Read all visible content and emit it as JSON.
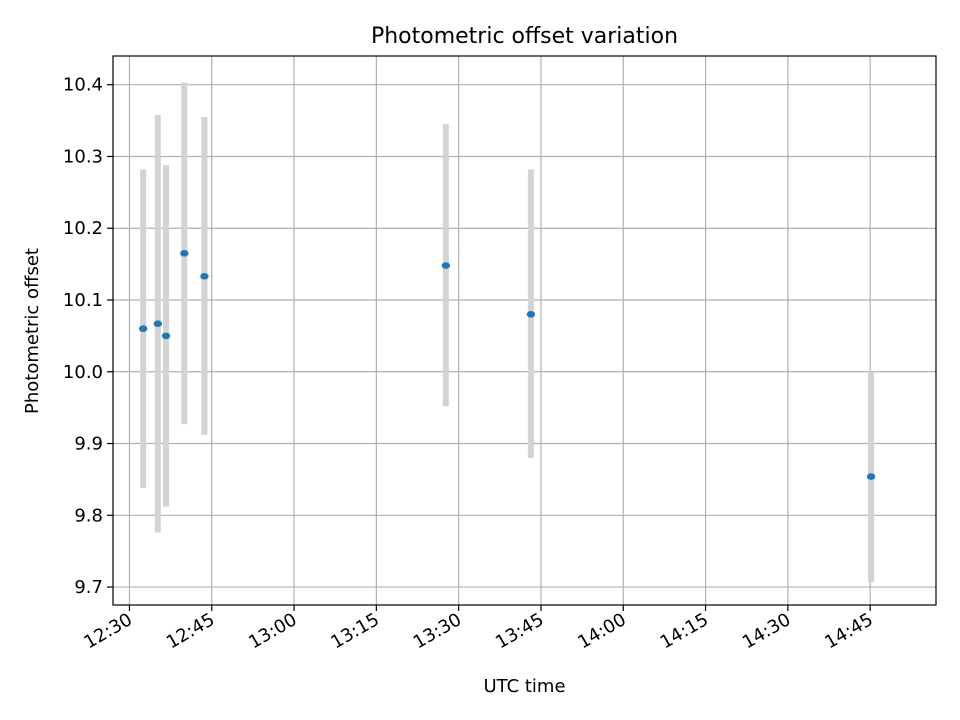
{
  "chart_data": {
    "type": "scatter",
    "title": "Photometric offset variation",
    "xlabel": "UTC time",
    "ylabel": "Photometric offset",
    "x_axis": "time",
    "xlim": [
      "12:27",
      "14:57"
    ],
    "ylim": [
      9.675,
      10.44
    ],
    "x_ticks": [
      "12:30",
      "12:45",
      "13:00",
      "13:15",
      "13:30",
      "13:45",
      "14:00",
      "14:15",
      "14:30",
      "14:45"
    ],
    "y_ticks": [
      "9.7",
      "9.8",
      "9.9",
      "10.0",
      "10.1",
      "10.2",
      "10.3",
      "10.4"
    ],
    "grid": true,
    "marker_color": "#1f77b4",
    "errorbar_color": "#d3d3d3",
    "series": [
      {
        "points": [
          {
            "x": "12:32:30",
            "y": 10.06,
            "low": 9.838,
            "high": 10.282
          },
          {
            "x": "12:35:10",
            "y": 10.067,
            "low": 9.776,
            "high": 10.358
          },
          {
            "x": "12:36:40",
            "y": 10.05,
            "low": 9.812,
            "high": 10.288
          },
          {
            "x": "12:40:00",
            "y": 10.165,
            "low": 9.927,
            "high": 10.403
          },
          {
            "x": "12:43:40",
            "y": 10.133,
            "low": 9.912,
            "high": 10.355
          },
          {
            "x": "13:27:40",
            "y": 10.148,
            "low": 9.952,
            "high": 10.345
          },
          {
            "x": "13:43:10",
            "y": 10.08,
            "low": 9.88,
            "high": 10.282
          },
          {
            "x": "14:45:10",
            "y": 9.854,
            "low": 9.707,
            "high": 10.0
          }
        ]
      }
    ]
  }
}
